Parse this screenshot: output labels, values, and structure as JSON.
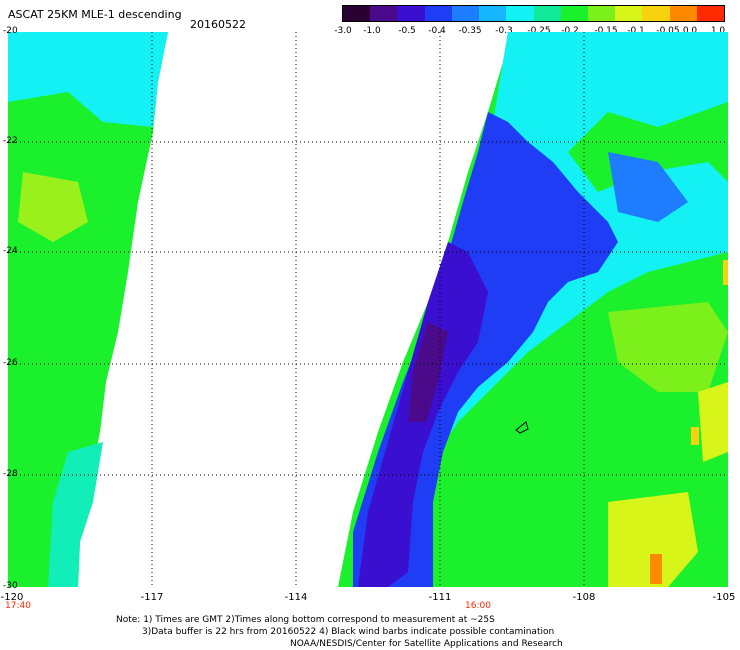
{
  "title": "ASCAT 25KM MLE-1 descending",
  "date": "20160522",
  "colorbar": {
    "labels": [
      "-3.0",
      "-1.0",
      "-0.5",
      "-0.4",
      "-0.35",
      "-0.3",
      "-0.25",
      "-0.2",
      "-0.15",
      "-0.1",
      "-0.05",
      "0.0",
      "1.0"
    ],
    "colors": [
      "#2a0033",
      "#4a0a8a",
      "#3a0fcf",
      "#1f3df5",
      "#1e7cff",
      "#17b7ff",
      "#13f1f5",
      "#11e89a",
      "#1af02c",
      "#7cf01a",
      "#d7f519",
      "#f7d20f",
      "#ff8a00",
      "#ff2a00"
    ]
  },
  "axes": {
    "y_labels": [
      "-20",
      "-22",
      "-24",
      "-26",
      "-28",
      "-30"
    ],
    "x_labels": [
      "-120",
      "-117",
      "-114",
      "-111",
      "-108",
      "-105"
    ]
  },
  "times": [
    "17:40",
    "16:00"
  ],
  "notes": [
    "Note: 1) Times are GMT 2)Times along bottom correspond to measurement at ~25S",
    "3)Data buffer is 22 hrs from 20160522 4) Black wind barbs indicate possible contamination",
    "NOAA/NESDIS/Center for Satellite Applications and Research"
  ]
}
